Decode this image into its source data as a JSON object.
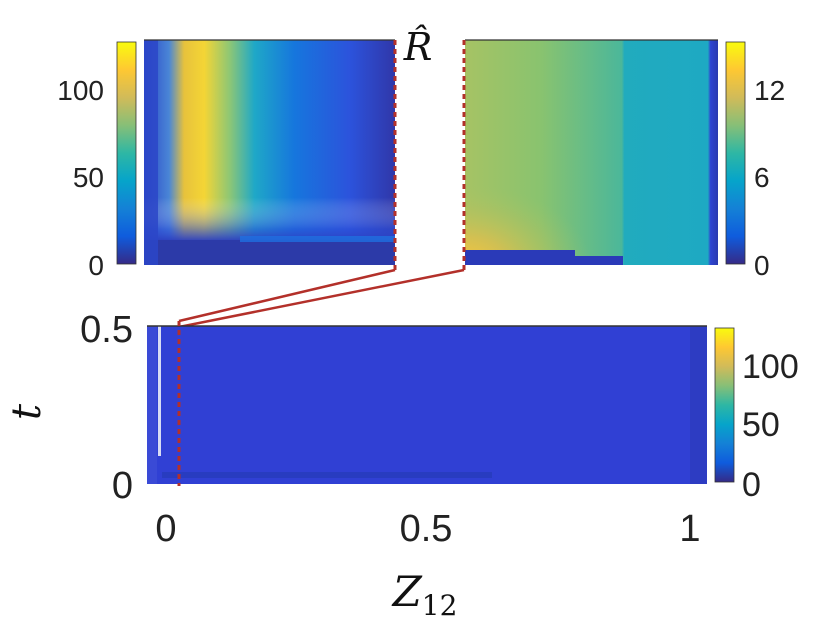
{
  "figure": {
    "title": "R̂",
    "xlabel": "Z",
    "xlabel_sub": "12",
    "ylabel": "t"
  },
  "colors": {
    "parula": [
      "#352a87",
      "#0f5cdd",
      "#1481d6",
      "#06a4ca",
      "#2eb7a4",
      "#87bf77",
      "#d1bb59",
      "#fec832",
      "#f9fb0e"
    ],
    "zoom_line": "#b3302a",
    "background": "#ffffff"
  },
  "chart_data": [
    {
      "panel": "top-left zoom",
      "type": "heatmap",
      "description_of_field": "R̂ over small Z12 range, early times",
      "y_ticks": [
        "0",
        "50",
        "100"
      ],
      "ylim": [
        0,
        125
      ],
      "colorbar": {
        "ticks": [],
        "range": [
          0,
          14
        ]
      }
    },
    {
      "panel": "top-right zoom",
      "type": "heatmap",
      "ylim": [
        0,
        125
      ],
      "colorbar": {
        "ticks": [
          "0",
          "6",
          "12"
        ],
        "range": [
          0,
          14
        ]
      }
    },
    {
      "panel": "bottom full",
      "type": "heatmap",
      "x_ticks": [
        "0",
        "0.5",
        "1"
      ],
      "xlim": [
        0,
        1
      ],
      "y_ticks": [
        "0",
        "0.5"
      ],
      "ylim": [
        0,
        0.5
      ],
      "colorbar": {
        "ticks": [
          "0",
          "50",
          "100"
        ],
        "range": [
          0,
          125
        ]
      }
    }
  ]
}
